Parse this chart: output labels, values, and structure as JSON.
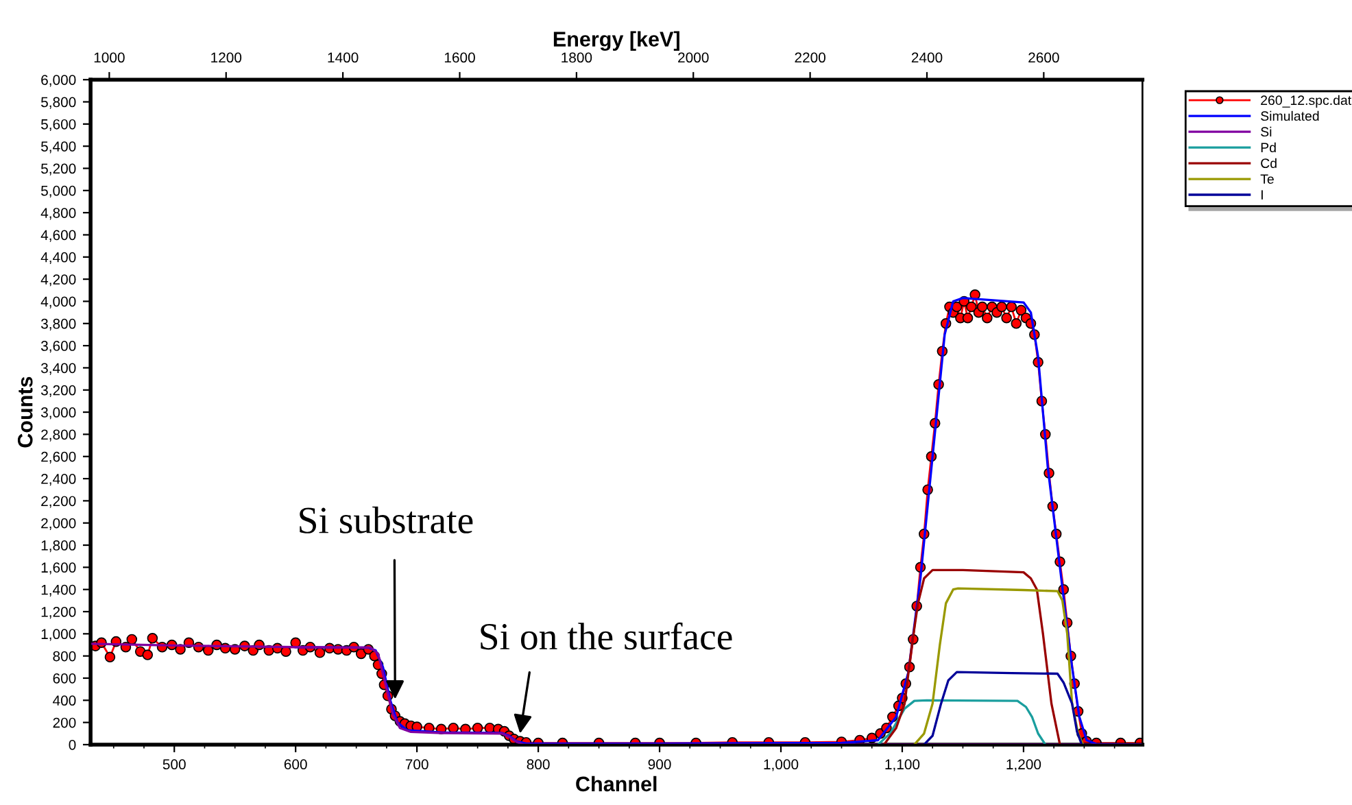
{
  "chart_data": {
    "type": "line",
    "xlabel": "Channel",
    "ylabel": "Counts",
    "x2label": "Energy [keV]",
    "xlim": [
      431,
      1298
    ],
    "xticks": [
      500,
      600,
      700,
      800,
      900,
      {
        "value": 1000,
        "label": "1,000"
      },
      {
        "value": 1100,
        "label": "1,100"
      },
      {
        "value": 1200,
        "label": "1,200"
      }
    ],
    "x2lim": [
      968,
      2769
    ],
    "x2ticks": [
      1000,
      1200,
      1400,
      1600,
      1800,
      2000,
      2200,
      2400,
      2600
    ],
    "ylim": [
      0,
      6000
    ],
    "yticks": [
      0,
      200,
      400,
      600,
      800,
      {
        "value": 1000,
        "label": "1,000"
      },
      {
        "value": 1200,
        "label": "1,200"
      },
      {
        "value": 1400,
        "label": "1,400"
      },
      {
        "value": 1600,
        "label": "1,600"
      },
      {
        "value": 1800,
        "label": "1,800"
      },
      {
        "value": 2000,
        "label": "2,000"
      },
      {
        "value": 2200,
        "label": "2,200"
      },
      {
        "value": 2400,
        "label": "2,400"
      },
      {
        "value": 2600,
        "label": "2,600"
      },
      {
        "value": 2800,
        "label": "2,800"
      },
      {
        "value": 3000,
        "label": "3,000"
      },
      {
        "value": 3200,
        "label": "3,200"
      },
      {
        "value": 3400,
        "label": "3,400"
      },
      {
        "value": 3600,
        "label": "3,600"
      },
      {
        "value": 3800,
        "label": "3,800"
      },
      {
        "value": 4000,
        "label": "4,000"
      },
      {
        "value": 4200,
        "label": "4,200"
      },
      {
        "value": 4400,
        "label": "4,400"
      },
      {
        "value": 4600,
        "label": "4,600"
      },
      {
        "value": 4800,
        "label": "4,800"
      },
      {
        "value": 5000,
        "label": "5,000"
      },
      {
        "value": 5200,
        "label": "5,200"
      },
      {
        "value": 5400,
        "label": "5,400"
      },
      {
        "value": 5600,
        "label": "5,600"
      },
      {
        "value": 5800,
        "label": "5,800"
      },
      {
        "value": 6000,
        "label": "6,000"
      }
    ],
    "grid": false,
    "legend": "top right",
    "line_style": "solid",
    "annotations": [
      {
        "text": "Si substrate",
        "x": 682,
        "y": 410
      },
      {
        "text": "Si on the surface",
        "x": 785,
        "y": 100
      }
    ],
    "series": [
      {
        "name": "260_12.spc.dat",
        "color": "#ff0000",
        "marker": "circle",
        "x": [
          435,
          440,
          447,
          452,
          460,
          465,
          472,
          478,
          482,
          490,
          498,
          505,
          512,
          520,
          528,
          535,
          542,
          550,
          558,
          565,
          570,
          578,
          585,
          592,
          600,
          606,
          612,
          620,
          628,
          635,
          642,
          648,
          654,
          660,
          665,
          668,
          671,
          673,
          676,
          679,
          682,
          686,
          690,
          695,
          700,
          710,
          720,
          730,
          740,
          750,
          760,
          767,
          772,
          776,
          780,
          785,
          790,
          800,
          820,
          850,
          880,
          900,
          930,
          960,
          990,
          1020,
          1050,
          1065,
          1075,
          1082,
          1087,
          1092,
          1097,
          1100,
          1103,
          1106,
          1109,
          1112,
          1115,
          1118,
          1121,
          1124,
          1127,
          1130,
          1133,
          1136,
          1139,
          1142,
          1145,
          1148,
          1151,
          1154,
          1157,
          1160,
          1163,
          1166,
          1170,
          1174,
          1178,
          1182,
          1186,
          1190,
          1194,
          1198,
          1202,
          1206,
          1209,
          1212,
          1215,
          1218,
          1221,
          1224,
          1227,
          1230,
          1233,
          1236,
          1239,
          1242,
          1245,
          1248,
          1252,
          1260,
          1280,
          1296
        ],
        "values": [
          890,
          920,
          790,
          930,
          880,
          950,
          840,
          810,
          960,
          880,
          900,
          860,
          920,
          880,
          850,
          900,
          870,
          860,
          890,
          850,
          900,
          850,
          870,
          840,
          920,
          850,
          880,
          830,
          870,
          860,
          850,
          880,
          820,
          860,
          800,
          720,
          640,
          540,
          440,
          320,
          260,
          210,
          190,
          170,
          160,
          150,
          140,
          150,
          140,
          150,
          150,
          140,
          120,
          80,
          50,
          30,
          20,
          15,
          15,
          15,
          15,
          15,
          15,
          20,
          20,
          20,
          25,
          40,
          60,
          100,
          150,
          250,
          350,
          420,
          550,
          700,
          950,
          1250,
          1600,
          1900,
          2300,
          2600,
          2900,
          3250,
          3550,
          3800,
          3950,
          3900,
          3950,
          3850,
          4000,
          3850,
          3950,
          4060,
          3900,
          3950,
          3850,
          3950,
          3900,
          3950,
          3850,
          3950,
          3800,
          3920,
          3850,
          3800,
          3700,
          3450,
          3100,
          2800,
          2450,
          2150,
          1900,
          1650,
          1400,
          1100,
          800,
          550,
          300,
          100,
          30,
          15,
          15,
          15
        ]
      },
      {
        "name": "Simulated",
        "color": "#0000ff",
        "x": [
          600,
          660,
          666,
          672,
          678,
          684,
          692,
          720,
          770,
          776,
          782,
          790,
          900,
          1050,
          1080,
          1095,
          1105,
          1115,
          1125,
          1135,
          1142,
          1150,
          1200,
          1206,
          1212,
          1220,
          1230,
          1240,
          1246,
          1252,
          1260,
          1298
        ],
        "values": [
          880,
          875,
          850,
          700,
          400,
          200,
          130,
          110,
          105,
          80,
          30,
          10,
          10,
          15,
          40,
          250,
          650,
          1500,
          2600,
          3700,
          4000,
          4030,
          3990,
          3900,
          3500,
          2500,
          1600,
          700,
          250,
          40,
          5,
          0
        ]
      },
      {
        "name": "Si",
        "color": "#8000a0",
        "x": [
          431,
          500,
          600,
          662,
          668,
          674,
          680,
          686,
          695,
          720,
          770,
          776,
          782,
          788,
          1298
        ],
        "values": [
          910,
          895,
          880,
          875,
          820,
          550,
          280,
          150,
          115,
          105,
          100,
          70,
          25,
          0,
          0
        ]
      },
      {
        "name": "Pd",
        "color": "#1a9e9e",
        "x": [
          1080,
          1090,
          1102,
          1110,
          1120,
          1195,
          1202,
          1207,
          1212,
          1218
        ],
        "values": [
          0,
          100,
          325,
          395,
          400,
          395,
          340,
          250,
          100,
          0
        ]
      },
      {
        "name": "Cd",
        "color": "#990000",
        "x": [
          1085,
          1095,
          1102,
          1108,
          1113,
          1118,
          1125,
          1150,
          1200,
          1206,
          1211,
          1216,
          1223,
          1230
        ],
        "values": [
          0,
          150,
          370,
          900,
          1275,
          1500,
          1575,
          1575,
          1555,
          1500,
          1400,
          1000,
          370,
          0
        ]
      },
      {
        "name": "Te",
        "color": "#999900",
        "x": [
          1110,
          1118,
          1125,
          1131,
          1136,
          1142,
          1146,
          1200,
          1228,
          1232,
          1236,
          1240,
          1245,
          1249
        ],
        "values": [
          0,
          100,
          370,
          900,
          1275,
          1400,
          1410,
          1395,
          1385,
          1300,
          1000,
          370,
          100,
          0
        ]
      },
      {
        "name": "I",
        "color": "#000099",
        "x": [
          1118,
          1125,
          1132,
          1138,
          1145,
          1190,
          1228,
          1233,
          1240,
          1244,
          1248
        ],
        "values": [
          0,
          80,
          370,
          580,
          655,
          645,
          640,
          560,
          370,
          120,
          0
        ]
      }
    ]
  }
}
